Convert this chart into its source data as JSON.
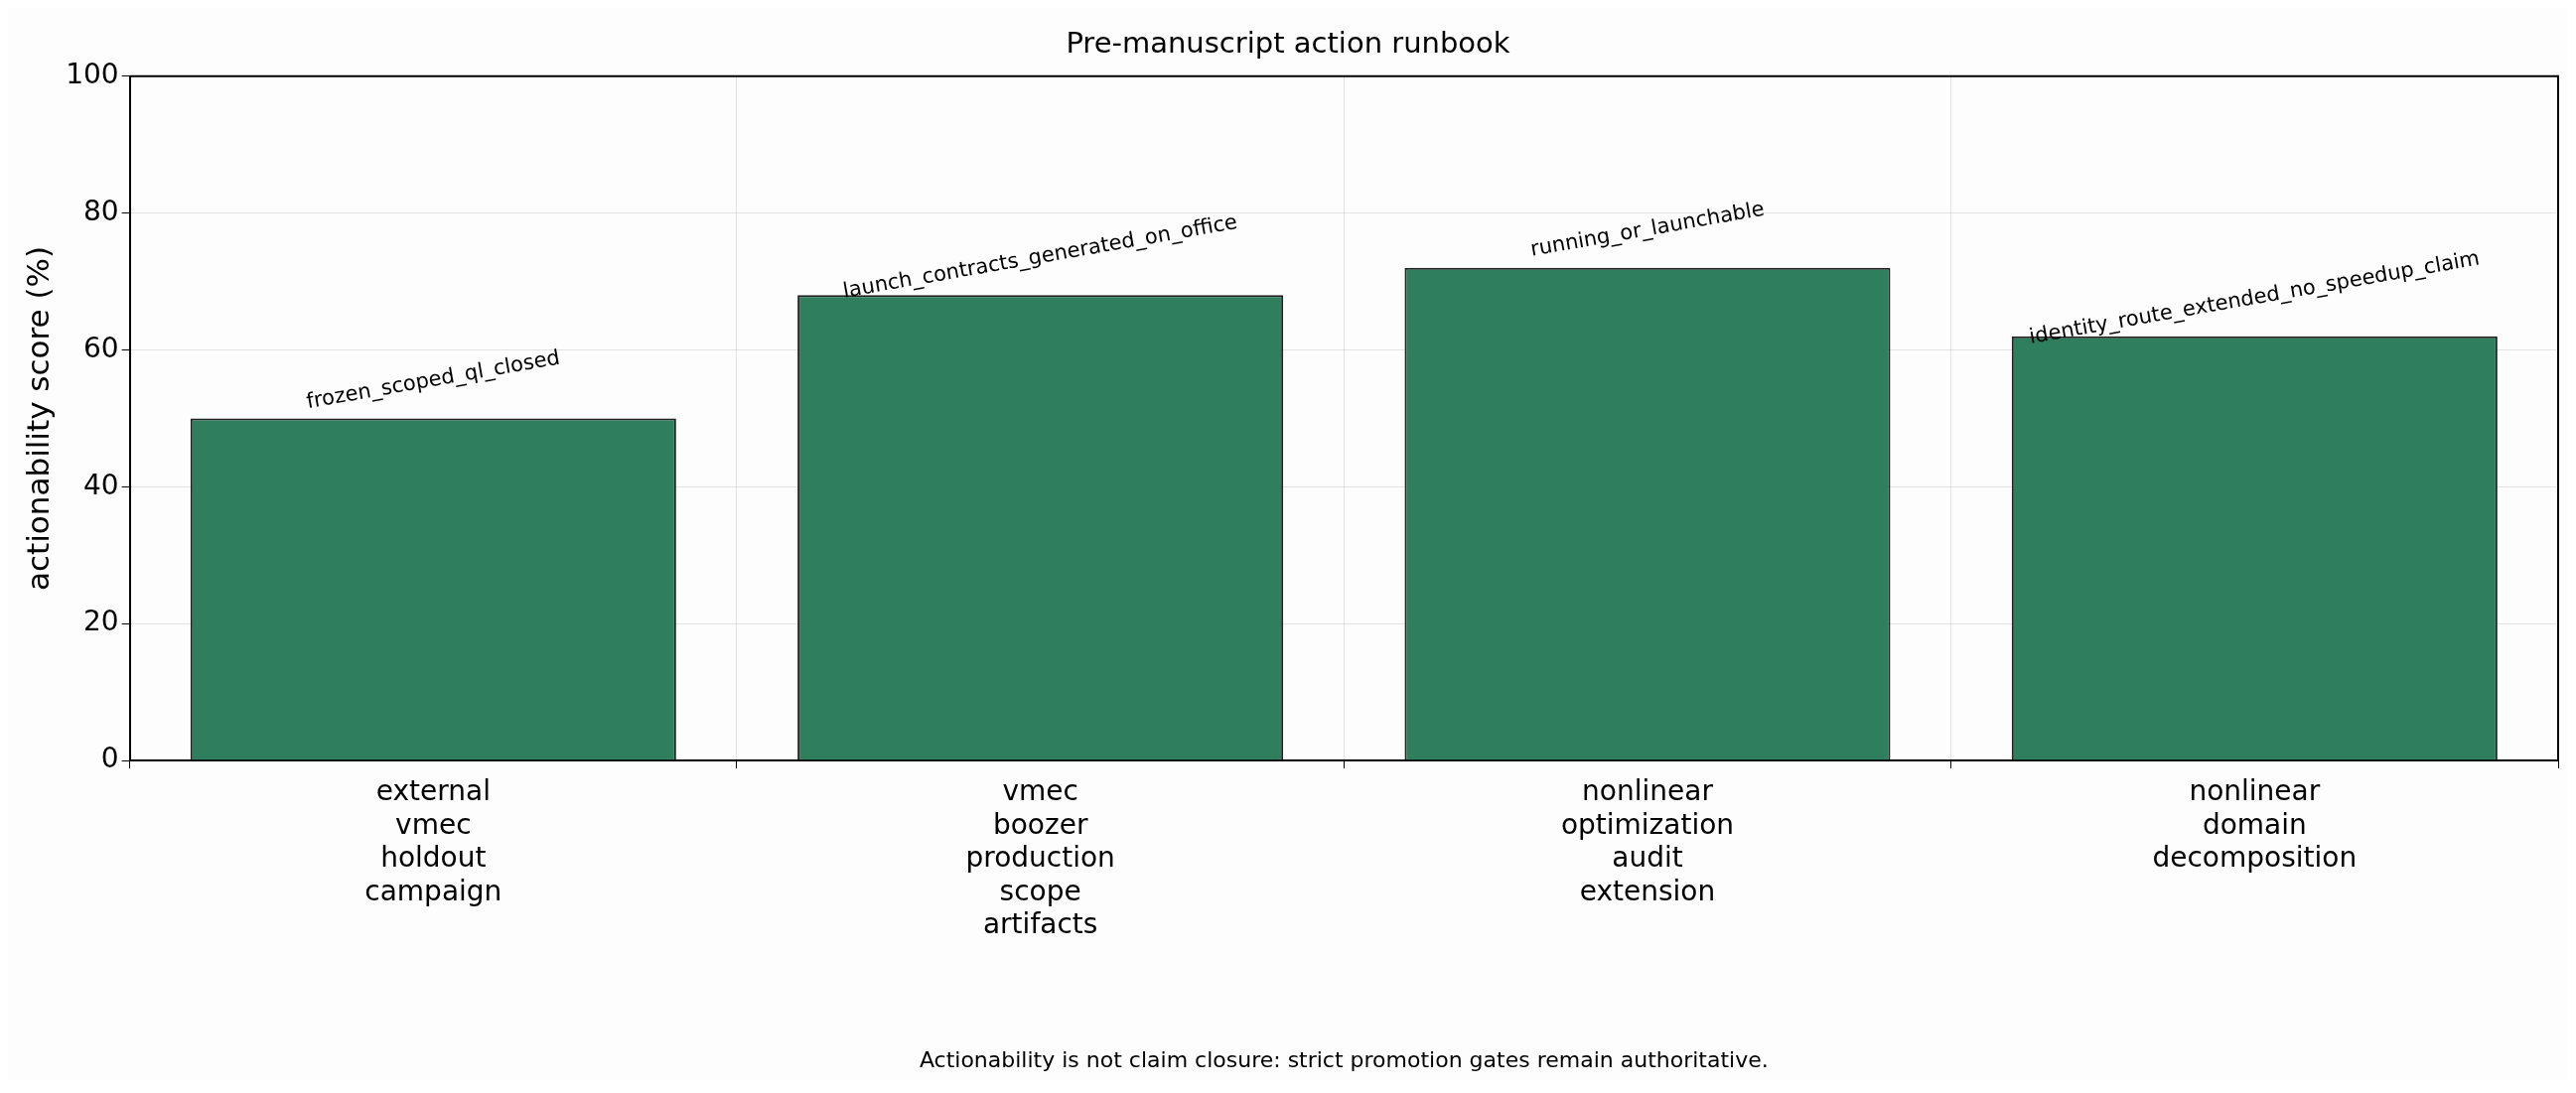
{
  "chart_data": {
    "type": "bar",
    "title": "Pre-manuscript action runbook",
    "ylabel": "actionability score (%)",
    "categories": [
      "external vmec holdout campaign",
      "vmec boozer production scope artifacts",
      "nonlinear optimization audit extension",
      "nonlinear domain decomposition"
    ],
    "values": [
      50,
      68,
      72,
      62
    ],
    "color": "#2f7f5f",
    "ylim": [
      0,
      100
    ],
    "yticks": [
      0,
      20,
      40,
      60,
      80,
      100
    ],
    "grid": true,
    "annotations": [
      {
        "text": "frozen_scoped_ql_closed",
        "x": "external vmec holdout campaign",
        "y": 50
      },
      {
        "text": "launch_contracts_generated_on_office",
        "x": "vmec boozer production scope artifacts",
        "y": 68
      },
      {
        "text": "running_or_launchable",
        "x": "nonlinear optimization audit extension",
        "y": 72
      },
      {
        "text": "identity_route_extended_no_speedup_claim",
        "x": "nonlinear domain decomposition",
        "y": 62
      },
      "Actionability is not claim closure: strict promotion gates remain authoritative."
    ]
  }
}
